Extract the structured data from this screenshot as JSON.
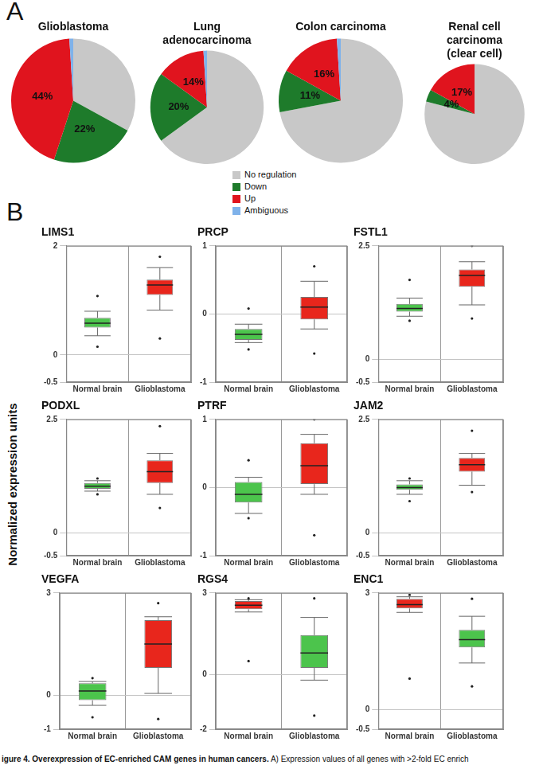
{
  "panels": [
    "A",
    "B"
  ],
  "y_label": "Normalized expression units",
  "caption": {
    "bold": "igure 4. Overexpression of EC-enriched CAM genes in human cancers.",
    "text": "A) Expression values of all genes with >2-fold EC enrich"
  },
  "chart_data": [
    {
      "type": "pie",
      "title": [
        "Glioblastoma"
      ],
      "categories": [
        "No regulation",
        "Down",
        "Up",
        "Ambiguous"
      ],
      "values": [
        33,
        22,
        44,
        1
      ],
      "colors": [
        "#c8c8c8",
        "#1e7b2b",
        "#e0141e",
        "#7fb2ea"
      ],
      "data_labels": true,
      "value_labels": [
        null,
        "22%",
        "44%",
        null
      ]
    },
    {
      "type": "pie",
      "title": [
        "Lung",
        "adenocarcinoma"
      ],
      "categories": [
        "No regulation",
        "Down",
        "Up",
        "Ambiguous"
      ],
      "values": [
        65,
        20,
        14,
        1
      ],
      "colors": [
        "#c8c8c8",
        "#1e7b2b",
        "#e0141e",
        "#7fb2ea"
      ],
      "data_labels": true,
      "value_labels": [
        null,
        "20%",
        "14%",
        null
      ],
      "legend": "bottom"
    },
    {
      "type": "pie",
      "title": [
        "Colon carcinoma"
      ],
      "categories": [
        "No regulation",
        "Down",
        "Up",
        "Ambiguous"
      ],
      "values": [
        72,
        11,
        16,
        1
      ],
      "colors": [
        "#c8c8c8",
        "#1e7b2b",
        "#e0141e",
        "#7fb2ea"
      ],
      "data_labels": true,
      "value_labels": [
        null,
        "11%",
        "16%",
        null
      ]
    },
    {
      "type": "pie",
      "title": [
        "Renal cell",
        "carcinoma",
        "(clear cell)"
      ],
      "categories": [
        "No regulation",
        "Down",
        "Up",
        "Ambiguous"
      ],
      "values": [
        79,
        4,
        17,
        0
      ],
      "colors": [
        "#c8c8c8",
        "#1e7b2b",
        "#e0141e",
        "#7fb2ea"
      ],
      "data_labels": true,
      "value_labels": [
        null,
        "4%",
        "17%",
        null
      ]
    },
    {
      "type": "box",
      "title": "LIMS1",
      "categories": [
        "Normal brain",
        "Glioblastoma"
      ],
      "colors": [
        "#4cc44c",
        "#e8261c"
      ],
      "ylim": [
        -0.5,
        2
      ],
      "yticks": [
        -0.5,
        0,
        2
      ],
      "grid": true,
      "stats": [
        {
          "min": 0.35,
          "q1": 0.5,
          "median": 0.58,
          "q3": 0.68,
          "max": 0.8,
          "outliers": [
            0.15,
            1.08
          ]
        },
        {
          "min": 0.82,
          "q1": 1.1,
          "median": 1.28,
          "q3": 1.38,
          "max": 1.6,
          "outliers": [
            0.3,
            1.8
          ]
        }
      ]
    },
    {
      "type": "box",
      "title": "PRCP",
      "categories": [
        "Normal brain",
        "Glioblastoma"
      ],
      "colors": [
        "#4cc44c",
        "#e8261c"
      ],
      "ylim": [
        -1,
        1
      ],
      "yticks": [
        -1,
        0,
        1
      ],
      "grid": true,
      "stats": [
        {
          "min": -0.42,
          "q1": -0.38,
          "median": -0.3,
          "q3": -0.22,
          "max": -0.15,
          "outliers": [
            -0.52,
            0.08
          ]
        },
        {
          "min": -0.22,
          "q1": -0.08,
          "median": 0.1,
          "q3": 0.25,
          "max": 0.48,
          "outliers": [
            -0.58,
            0.7
          ]
        }
      ]
    },
    {
      "type": "box",
      "title": "FSTL1",
      "categories": [
        "Normal brain",
        "Glioblastoma"
      ],
      "colors": [
        "#4cc44c",
        "#e8261c"
      ],
      "ylim": [
        -0.5,
        2.5
      ],
      "yticks": [
        -0.5,
        0,
        2.5
      ],
      "grid": true,
      "stats": [
        {
          "min": 0.95,
          "q1": 1.05,
          "median": 1.12,
          "q3": 1.22,
          "max": 1.35,
          "outliers": [
            0.85,
            1.75
          ]
        },
        {
          "min": 1.2,
          "q1": 1.6,
          "median": 1.85,
          "q3": 1.98,
          "max": 2.15,
          "outliers": [
            0.9,
            2.5
          ]
        }
      ]
    },
    {
      "type": "box",
      "title": "PODXL",
      "categories": [
        "Normal brain",
        "Glioblastoma"
      ],
      "colors": [
        "#4cc44c",
        "#e8261c"
      ],
      "ylim": [
        -0.5,
        2.5
      ],
      "yticks": [
        -0.5,
        0,
        2.5
      ],
      "grid": true,
      "stats": [
        {
          "min": 0.92,
          "q1": 0.97,
          "median": 1.03,
          "q3": 1.1,
          "max": 1.15,
          "outliers": [
            0.85,
            1.2
          ]
        },
        {
          "min": 0.85,
          "q1": 1.1,
          "median": 1.35,
          "q3": 1.6,
          "max": 1.75,
          "outliers": [
            0.55,
            2.35
          ]
        }
      ]
    },
    {
      "type": "box",
      "title": "PTRF",
      "categories": [
        "Normal brain",
        "Glioblastoma"
      ],
      "colors": [
        "#4cc44c",
        "#e8261c"
      ],
      "ylim": [
        -1,
        1
      ],
      "yticks": [
        -1,
        0,
        1
      ],
      "grid": true,
      "stats": [
        {
          "min": -0.38,
          "q1": -0.22,
          "median": -0.1,
          "q3": 0.08,
          "max": 0.15,
          "outliers": [
            -0.45,
            0.4
          ]
        },
        {
          "min": -0.1,
          "q1": 0.05,
          "median": 0.32,
          "q3": 0.65,
          "max": 0.78,
          "outliers": [
            -0.7,
            1
          ]
        }
      ]
    },
    {
      "type": "box",
      "title": "JAM2",
      "categories": [
        "Normal brain",
        "Glioblastoma"
      ],
      "colors": [
        "#4cc44c",
        "#e8261c"
      ],
      "ylim": [
        -0.5,
        2.5
      ],
      "yticks": [
        -0.5,
        0,
        2.5
      ],
      "grid": true,
      "stats": [
        {
          "min": 0.85,
          "q1": 0.95,
          "median": 1,
          "q3": 1.07,
          "max": 1.15,
          "outliers": [
            0.7,
            1.2
          ]
        },
        {
          "min": 1.05,
          "q1": 1.35,
          "median": 1.5,
          "q3": 1.65,
          "max": 1.75,
          "outliers": [
            0.9,
            2.25
          ]
        }
      ]
    },
    {
      "type": "box",
      "title": "VEGFA",
      "categories": [
        "Normal brain",
        "Glioblastoma"
      ],
      "colors": [
        "#4cc44c",
        "#e8261c"
      ],
      "ylim": [
        -1,
        3
      ],
      "yticks": [
        -1,
        0,
        3
      ],
      "grid": true,
      "stats": [
        {
          "min": -0.3,
          "q1": -0.15,
          "median": 0.12,
          "q3": 0.35,
          "max": 0.4,
          "outliers": [
            -0.65,
            0.5
          ]
        },
        {
          "min": 0.05,
          "q1": 0.8,
          "median": 1.5,
          "q3": 2.2,
          "max": 2.3,
          "outliers": [
            -0.7,
            2.7
          ]
        }
      ]
    },
    {
      "type": "box",
      "title": "RGS4",
      "categories": [
        "Normal brain",
        "Glioblastoma"
      ],
      "colors": [
        "#e8261c",
        "#4cc44c"
      ],
      "ylim": [
        -2,
        3
      ],
      "yticks": [
        -2,
        0,
        3
      ],
      "grid": true,
      "stats": [
        {
          "min": 2.3,
          "q1": 2.4,
          "median": 2.55,
          "q3": 2.7,
          "max": 2.75,
          "outliers": [
            0.5,
            2.8
          ]
        },
        {
          "min": -0.2,
          "q1": 0.25,
          "median": 0.8,
          "q3": 1.45,
          "max": 2.1,
          "outliers": [
            -1.5,
            2.8
          ]
        }
      ]
    },
    {
      "type": "box",
      "title": "ENC1",
      "categories": [
        "Normal brain",
        "Glioblastoma"
      ],
      "colors": [
        "#e8261c",
        "#4cc44c"
      ],
      "ylim": [
        -0.5,
        3
      ],
      "yticks": [
        -0.5,
        0,
        3
      ],
      "grid": true,
      "stats": [
        {
          "min": 2.5,
          "q1": 2.6,
          "median": 2.7,
          "q3": 2.85,
          "max": 2.9,
          "outliers": [
            0.8,
            2.95
          ]
        },
        {
          "min": 1.2,
          "q1": 1.6,
          "median": 1.8,
          "q3": 2.05,
          "max": 2.4,
          "outliers": [
            0.6,
            2.85
          ]
        }
      ]
    }
  ]
}
